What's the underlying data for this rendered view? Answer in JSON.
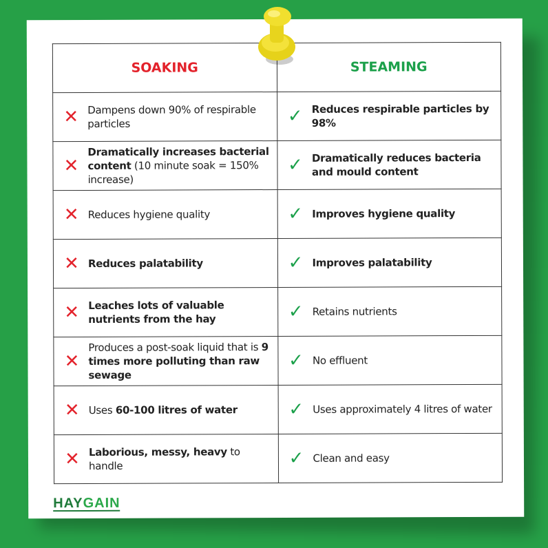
{
  "header": {
    "soaking": "SOAKING",
    "steaming": "STEAMING"
  },
  "colors": {
    "soaking": "#e3222b",
    "steaming": "#1ba04a",
    "background": "#26a047"
  },
  "icons": {
    "soaking": "cross-icon",
    "steaming": "check-icon"
  },
  "rows": [
    {
      "soaking": [
        {
          "text": "Dampens down 90% of respirable particles",
          "bold": false
        }
      ],
      "steaming": [
        {
          "text": "Reduces respirable particles by 98%",
          "bold": true
        }
      ]
    },
    {
      "soaking": [
        {
          "text": "Dramatically increases bacterial content",
          "bold": true
        },
        {
          "text": " (10 minute soak = 150% increase)",
          "bold": false
        }
      ],
      "steaming": [
        {
          "text": "Dramatically reduces bacteria and mould content",
          "bold": true
        }
      ]
    },
    {
      "soaking": [
        {
          "text": "Reduces hygiene quality",
          "bold": false
        }
      ],
      "steaming": [
        {
          "text": "Improves hygiene quality",
          "bold": true
        }
      ]
    },
    {
      "soaking": [
        {
          "text": "Reduces palatability",
          "bold": true
        }
      ],
      "steaming": [
        {
          "text": "Improves palatability",
          "bold": true
        }
      ]
    },
    {
      "soaking": [
        {
          "text": "Leaches lots of valuable nutrients from the hay",
          "bold": true
        }
      ],
      "steaming": [
        {
          "text": "Retains nutrients",
          "bold": false
        }
      ]
    },
    {
      "soaking": [
        {
          "text": "Produces a post-soak liquid that is ",
          "bold": false
        },
        {
          "text": "9 times more polluting than raw sewage",
          "bold": true
        }
      ],
      "steaming": [
        {
          "text": "No effluent",
          "bold": false
        }
      ]
    },
    {
      "soaking": [
        {
          "text": "Uses ",
          "bold": false
        },
        {
          "text": "60-100 litres of water",
          "bold": true
        }
      ],
      "steaming": [
        {
          "text": "Uses approximately 4 litres of water",
          "bold": false
        }
      ]
    },
    {
      "soaking": [
        {
          "text": "Laborious, messy, heavy",
          "bold": true
        },
        {
          "text": " to handle",
          "bold": false
        }
      ],
      "steaming": [
        {
          "text": "Clean and easy",
          "bold": false
        }
      ]
    }
  ],
  "logo": {
    "part1": "HAY",
    "part2": "GAIN"
  }
}
